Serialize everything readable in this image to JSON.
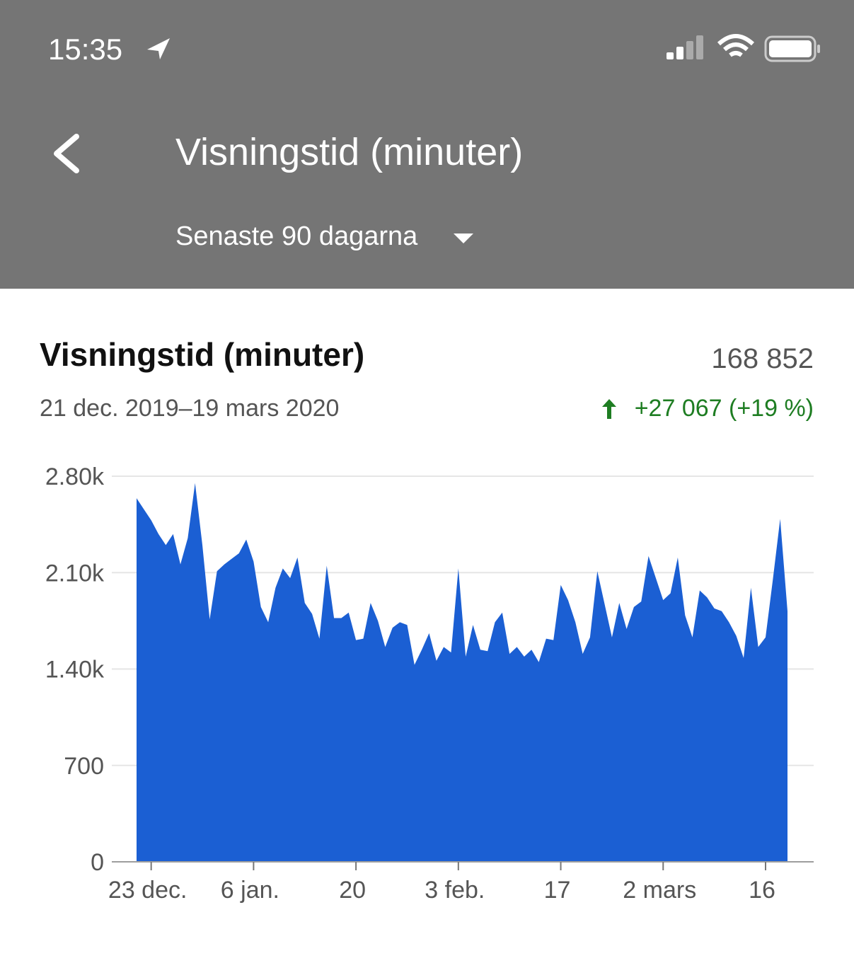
{
  "status_bar": {
    "time": "15:35"
  },
  "header": {
    "title": "Visningstid (minuter)",
    "period": "Senaste 90 dagarna"
  },
  "card": {
    "title": "Visningstid (minuter)",
    "total": "168 852",
    "date_range": "21 dec. 2019–19 mars 2020",
    "change": "+27 067 (+19 %)"
  },
  "chart_data": {
    "type": "area",
    "color": "#1b5fd3",
    "grid": true,
    "categories": [
      null,
      null,
      "23 dec.",
      null,
      null,
      null,
      null,
      null,
      null,
      null,
      null,
      null,
      null,
      null,
      null,
      null,
      "6 jan.",
      null,
      null,
      null,
      null,
      null,
      null,
      null,
      null,
      null,
      null,
      null,
      null,
      null,
      "20",
      null,
      null,
      null,
      null,
      null,
      null,
      null,
      null,
      null,
      null,
      null,
      null,
      null,
      "3 feb.",
      null,
      null,
      null,
      null,
      null,
      null,
      null,
      null,
      null,
      null,
      null,
      null,
      null,
      "17",
      null,
      null,
      null,
      null,
      null,
      null,
      null,
      null,
      null,
      null,
      null,
      null,
      null,
      "2 mars",
      null,
      null,
      null,
      null,
      null,
      null,
      null,
      null,
      null,
      null,
      null,
      null,
      null,
      "16",
      null,
      null,
      null
    ],
    "values": [
      2640,
      2560,
      2480,
      2380,
      2300,
      2380,
      2160,
      2350,
      2750,
      2300,
      1760,
      2110,
      2160,
      2200,
      2240,
      2340,
      2180,
      1850,
      1740,
      1990,
      2130,
      2060,
      2210,
      1880,
      1800,
      1620,
      2150,
      1770,
      1770,
      1810,
      1610,
      1620,
      1880,
      1750,
      1560,
      1700,
      1740,
      1720,
      1430,
      1540,
      1660,
      1460,
      1560,
      1520,
      2130,
      1490,
      1720,
      1540,
      1530,
      1740,
      1810,
      1510,
      1560,
      1490,
      1540,
      1450,
      1620,
      1610,
      2010,
      1900,
      1740,
      1510,
      1630,
      2110,
      1870,
      1630,
      1880,
      1690,
      1850,
      1890,
      2220,
      2060,
      1900,
      1950,
      2210,
      1790,
      1630,
      1970,
      1920,
      1840,
      1820,
      1740,
      1640,
      1480,
      1990,
      1560,
      1630,
      2050,
      2490,
      1820
    ],
    "ylim": [
      0,
      2800
    ],
    "yticks": [
      0,
      700,
      {
        "value": 1400,
        "label": "1.40k"
      },
      {
        "value": 2100,
        "label": "2.10k"
      },
      {
        "value": 2800,
        "label": "2.80k"
      }
    ]
  }
}
